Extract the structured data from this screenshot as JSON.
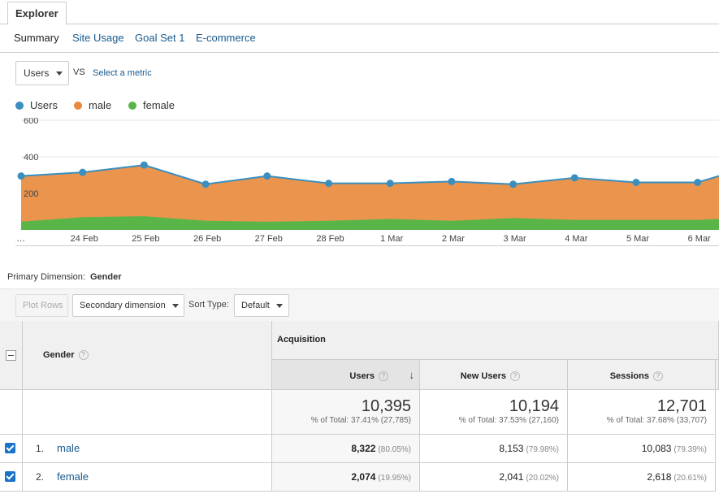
{
  "tabs": {
    "explorer": "Explorer"
  },
  "subnav": [
    {
      "label": "Summary",
      "active": true
    },
    {
      "label": "Site Usage"
    },
    {
      "label": "Goal Set 1"
    },
    {
      "label": "E-commerce"
    }
  ],
  "metric": {
    "selected": "Users",
    "vs": "VS",
    "select_metric": "Select a metric"
  },
  "legend": [
    {
      "label": "Users",
      "color": "#3a8fbf"
    },
    {
      "label": "male",
      "color": "#e8883a"
    },
    {
      "label": "female",
      "color": "#5ab548"
    }
  ],
  "chart_data": {
    "type": "area",
    "categories": [
      "…",
      "24 Feb",
      "25 Feb",
      "26 Feb",
      "27 Feb",
      "28 Feb",
      "1 Mar",
      "2 Mar",
      "3 Mar",
      "4 Mar",
      "5 Mar",
      "6 Mar",
      ""
    ],
    "series": [
      {
        "name": "Users",
        "values": [
          295,
          315,
          355,
          250,
          295,
          255,
          255,
          265,
          250,
          285,
          260,
          260,
          295
        ]
      },
      {
        "name": "female",
        "values": [
          45,
          70,
          75,
          50,
          45,
          50,
          60,
          50,
          65,
          55,
          55,
          55,
          60
        ]
      }
    ],
    "ylim": [
      0,
      600
    ],
    "yticks": [
      200,
      400,
      600
    ]
  },
  "primary_dimension": {
    "label": "Primary Dimension:",
    "value": "Gender"
  },
  "toolbar": {
    "plot_rows": "Plot Rows",
    "secondary_dimension": "Secondary dimension",
    "sort_type_label": "Sort Type:",
    "sort_type": "Default"
  },
  "table": {
    "group": "Acquisition",
    "dimension_header": "Gender",
    "columns": [
      "Users",
      "New Users",
      "Sessions"
    ],
    "totals": [
      {
        "value": "10,395",
        "sub": "% of Total: 37.41% (27,785)"
      },
      {
        "value": "10,194",
        "sub": "% of Total: 37.53% (27,160)"
      },
      {
        "value": "12,701",
        "sub": "% of Total: 37.68% (33,707)"
      }
    ],
    "rows": [
      {
        "index": "1.",
        "name": "male",
        "cells": [
          {
            "v": "8,322",
            "p": "(80.05%)"
          },
          {
            "v": "8,153",
            "p": "(79.98%)"
          },
          {
            "v": "10,083",
            "p": "(79.39%)"
          }
        ]
      },
      {
        "index": "2.",
        "name": "female",
        "cells": [
          {
            "v": "2,074",
            "p": "(19.95%)"
          },
          {
            "v": "2,041",
            "p": "(20.02%)"
          },
          {
            "v": "2,618",
            "p": "(20.61%)"
          }
        ]
      }
    ]
  }
}
